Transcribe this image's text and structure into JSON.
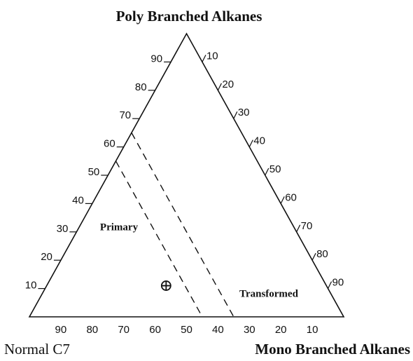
{
  "chart_data": {
    "type": "ternary",
    "top_label": "Poly Branched Alkanes",
    "left_label": "Normal C7",
    "right_label": "Mono Branched Alkanes",
    "poly_ticks": [
      10,
      20,
      30,
      40,
      50,
      60,
      70,
      80,
      90
    ],
    "mono_ticks": [
      10,
      20,
      30,
      40,
      50,
      60,
      70,
      80,
      90
    ],
    "normal_ticks": [
      90,
      80,
      70,
      60,
      50,
      40,
      30,
      20,
      10
    ],
    "boundaries": [
      45,
      35
    ],
    "regions": [
      "Primary",
      "Transformed"
    ],
    "point": {
      "normal": 51,
      "mono": 38,
      "poly": 11
    }
  }
}
